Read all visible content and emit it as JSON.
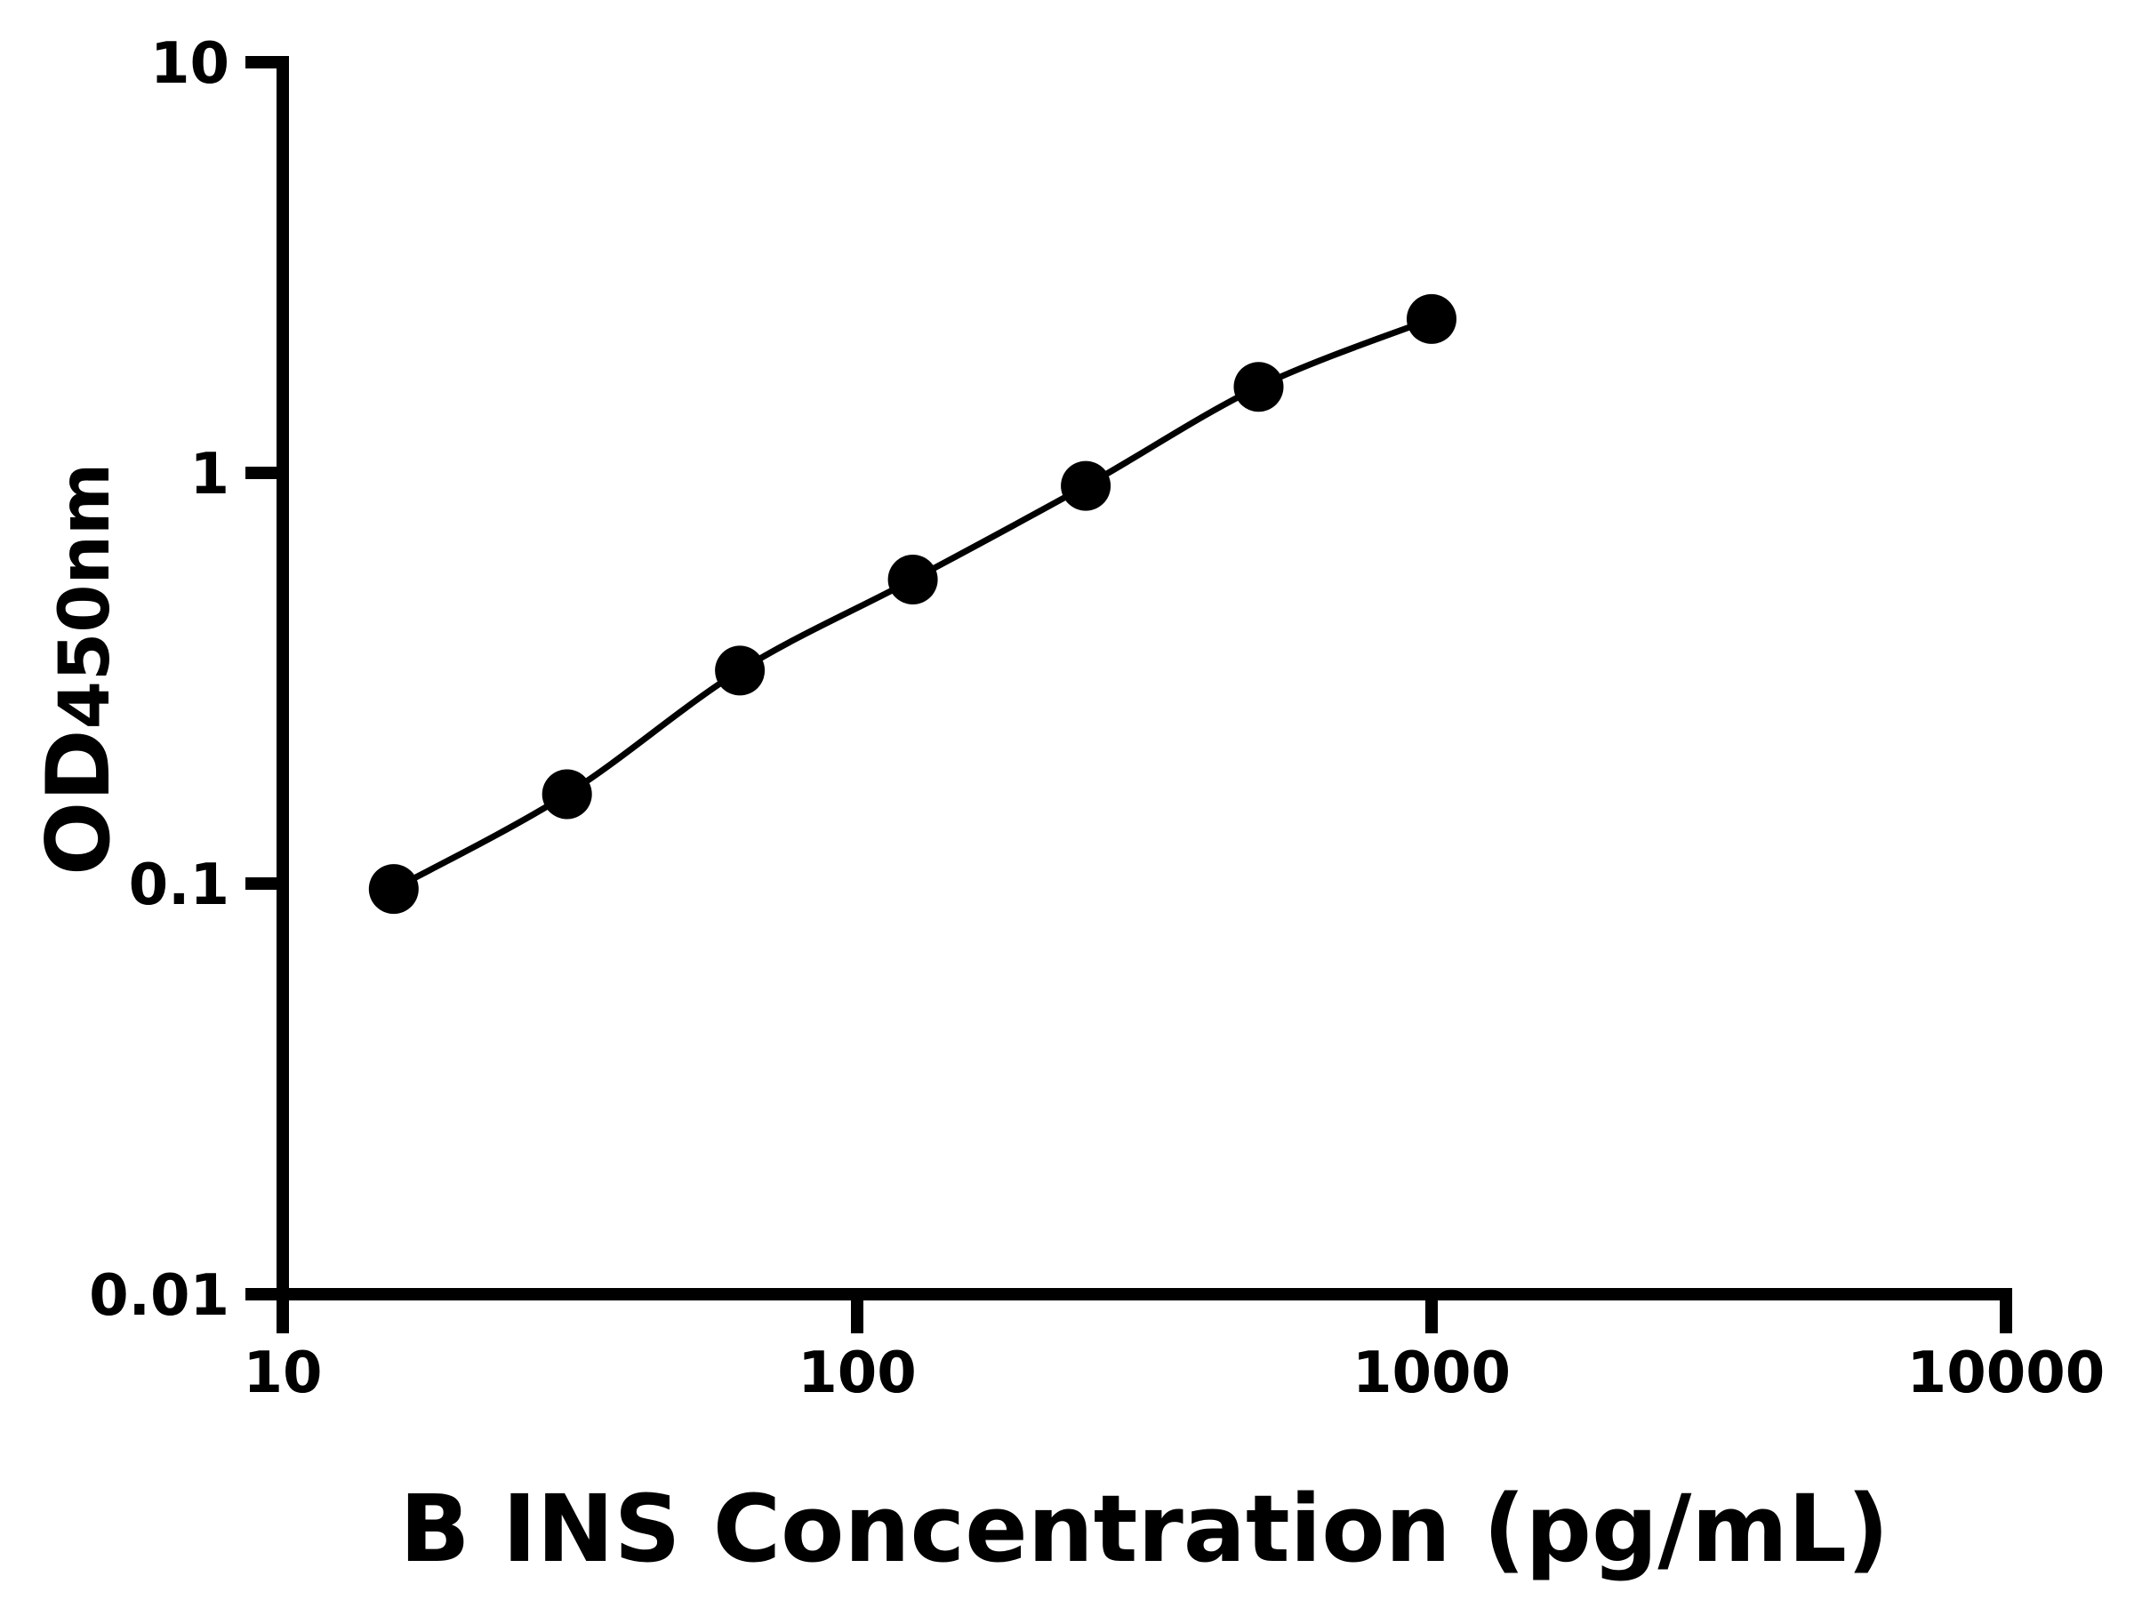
{
  "figure": {
    "background_color": "#ffffff",
    "foreground_color": "#000000"
  },
  "chart_data": {
    "type": "scatter",
    "title": "",
    "xlabel": "B INS Concentration (pg/mL)",
    "ylabel": {
      "text": "OD",
      "subscript": "450nm"
    },
    "x_scale": "log",
    "y_scale": "log",
    "xlim": [
      10,
      10000
    ],
    "ylim": [
      0.01,
      10
    ],
    "x_ticks": {
      "values": [
        10,
        100,
        1000,
        10000
      ],
      "labels": [
        "10",
        "100",
        "1000",
        "10000"
      ]
    },
    "y_ticks": {
      "values": [
        0.01,
        0.1,
        1,
        10
      ],
      "labels": [
        "0.01",
        "0.1",
        "1",
        "10"
      ]
    },
    "grid": false,
    "legend": null,
    "series": [
      {
        "marker": "circle",
        "line": "smooth",
        "color": "#000000",
        "x": [
          15.6,
          31.25,
          62.5,
          125,
          250,
          500,
          1000
        ],
        "y": [
          0.097,
          0.165,
          0.33,
          0.55,
          0.93,
          1.62,
          2.37
        ]
      }
    ]
  }
}
